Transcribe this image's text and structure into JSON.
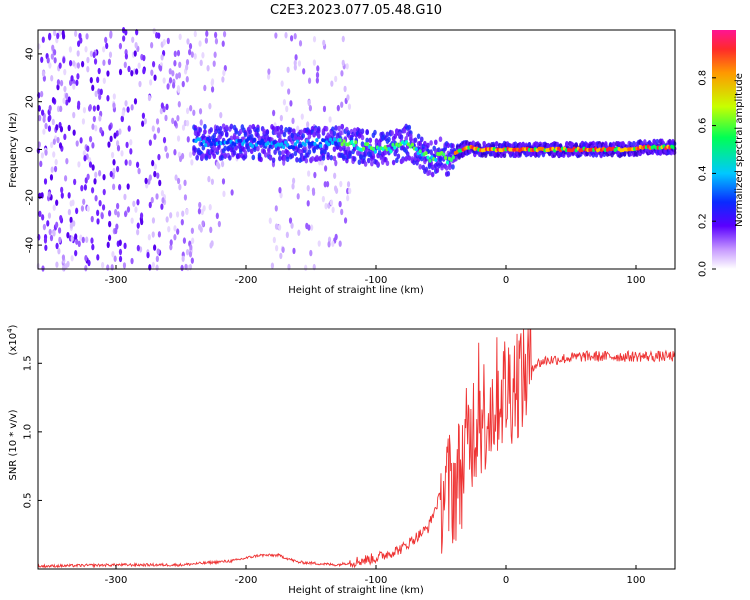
{
  "title": "C2E3.2023.077.05.48.G10",
  "chart_data": [
    {
      "type": "heatmap",
      "xlabel": "Height of straight line (km)",
      "ylabel": "Frequency (Hz)",
      "xlim": [
        -360,
        130
      ],
      "ylim": [
        -50,
        50
      ],
      "xticks": [
        -300,
        -200,
        -100,
        0,
        100
      ],
      "xtick_labels": [
        "-300",
        "-200",
        "-100",
        "0",
        "100"
      ],
      "yticks": [
        -40,
        -20,
        0,
        20,
        40
      ],
      "ytick_labels": [
        "-40",
        "-20",
        "0",
        "20",
        "40"
      ],
      "colorbar": {
        "label": "Normalized spectral amplitude",
        "range": [
          0,
          1
        ],
        "ticks": [
          0.0,
          0.2,
          0.4,
          0.6,
          0.8
        ],
        "tick_labels": [
          "0.0",
          "0.2",
          "0.4",
          "0.6",
          "0.8"
        ]
      },
      "signal_trace": {
        "x": [
          -240,
          -200,
          -160,
          -130,
          -110,
          -95,
          -85,
          -75,
          -65,
          -55,
          -48,
          -44,
          -40,
          -30,
          -20,
          0,
          30,
          60,
          90,
          110,
          130
        ],
        "y": [
          3,
          3,
          2,
          3,
          1,
          0,
          1,
          3,
          -2,
          -4,
          -2,
          -5,
          -2,
          1,
          0,
          0,
          0,
          0,
          0,
          1,
          1
        ]
      },
      "noise_region": [
        -360,
        -130
      ]
    },
    {
      "type": "line",
      "xlabel": "Height of straight line (km)",
      "ylabel": "SNR (10 * v/v)",
      "y_multiplier": "(x10",
      "y_multiplier_exp": "4",
      "y_multiplier_close": ")",
      "xlim": [
        -360,
        130
      ],
      "ylim": [
        0,
        1.75
      ],
      "xticks": [
        -300,
        -200,
        -100,
        0,
        100
      ],
      "xtick_labels": [
        "-300",
        "-200",
        "-100",
        "0",
        "100"
      ],
      "yticks": [
        0.5,
        1.0,
        1.5
      ],
      "ytick_labels": [
        "0.5",
        "1.0",
        "1.5"
      ],
      "color": "#ee3333",
      "series_envelope": {
        "name": "SNR",
        "x": [
          -360,
          -300,
          -250,
          -210,
          -190,
          -175,
          -160,
          -130,
          -100,
          -80,
          -60,
          -50,
          -40,
          -35,
          -30,
          -25,
          -20,
          -15,
          -10,
          -5,
          0,
          10,
          20,
          30,
          40,
          60,
          80,
          100,
          130
        ],
        "y": [
          0.02,
          0.03,
          0.03,
          0.06,
          0.1,
          0.1,
          0.05,
          0.03,
          0.08,
          0.15,
          0.3,
          0.55,
          0.6,
          0.7,
          0.9,
          1.05,
          1.1,
          1.15,
          1.2,
          1.3,
          1.3,
          1.4,
          1.48,
          1.52,
          1.53,
          1.55,
          1.55,
          1.55,
          1.55
        ]
      }
    }
  ]
}
